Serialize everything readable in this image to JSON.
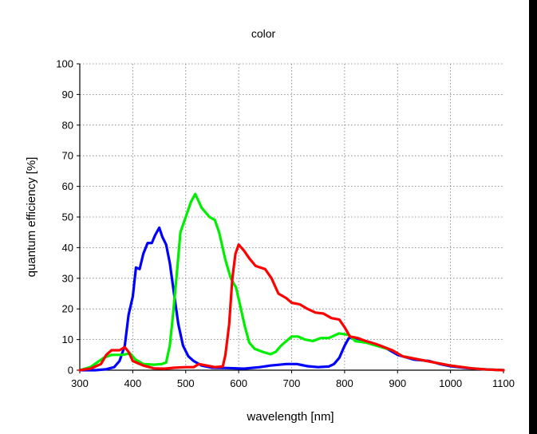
{
  "chart_data": {
    "type": "line",
    "title": "color",
    "xlabel": "wavelength [nm]",
    "ylabel": "quantum efficiency [%]",
    "xlim": [
      300,
      1100
    ],
    "ylim": [
      0,
      100
    ],
    "x_ticks": [
      "300",
      "400",
      "500",
      "600",
      "700",
      "800",
      "900",
      "1000",
      "1100"
    ],
    "y_ticks": [
      "0",
      "10",
      "20",
      "30",
      "40",
      "50",
      "60",
      "70",
      "80",
      "90",
      "100"
    ],
    "grid": true,
    "legend": false,
    "series": [
      {
        "color": "#0000ff",
        "points": [
          [
            300,
            0
          ],
          [
            330,
            0
          ],
          [
            350,
            0.3
          ],
          [
            365,
            1
          ],
          [
            375,
            3
          ],
          [
            385,
            8
          ],
          [
            392,
            18
          ],
          [
            400,
            24
          ],
          [
            406,
            33.5
          ],
          [
            413,
            33
          ],
          [
            420,
            38
          ],
          [
            428,
            41.5
          ],
          [
            436,
            41.5
          ],
          [
            442,
            44
          ],
          [
            450,
            46.5
          ],
          [
            456,
            43.5
          ],
          [
            463,
            41
          ],
          [
            470,
            35
          ],
          [
            478,
            25
          ],
          [
            486,
            15
          ],
          [
            495,
            8
          ],
          [
            505,
            4.5
          ],
          [
            515,
            3
          ],
          [
            530,
            1.5
          ],
          [
            550,
            0.8
          ],
          [
            580,
            0.7
          ],
          [
            610,
            0.5
          ],
          [
            640,
            1
          ],
          [
            660,
            1.5
          ],
          [
            690,
            2
          ],
          [
            710,
            2
          ],
          [
            730,
            1.3
          ],
          [
            750,
            1
          ],
          [
            770,
            1.2
          ],
          [
            780,
            2
          ],
          [
            790,
            4
          ],
          [
            800,
            8
          ],
          [
            808,
            10.5
          ],
          [
            820,
            10.5
          ],
          [
            850,
            9
          ],
          [
            880,
            7
          ],
          [
            900,
            5
          ],
          [
            930,
            3.5
          ],
          [
            960,
            3
          ],
          [
            980,
            2
          ],
          [
            1000,
            1.3
          ],
          [
            1030,
            0.7
          ],
          [
            1060,
            0.3
          ],
          [
            1100,
            0
          ]
        ]
      },
      {
        "color": "#00ee00",
        "points": [
          [
            300,
            0
          ],
          [
            320,
            1
          ],
          [
            345,
            4
          ],
          [
            360,
            5
          ],
          [
            380,
            5
          ],
          [
            395,
            5.5
          ],
          [
            405,
            3.5
          ],
          [
            420,
            2
          ],
          [
            440,
            1.8
          ],
          [
            455,
            2
          ],
          [
            463,
            2.5
          ],
          [
            470,
            8
          ],
          [
            476,
            18
          ],
          [
            484,
            33
          ],
          [
            490,
            45
          ],
          [
            500,
            50
          ],
          [
            510,
            55
          ],
          [
            518,
            57.5
          ],
          [
            522,
            56
          ],
          [
            530,
            53
          ],
          [
            545,
            50
          ],
          [
            555,
            49
          ],
          [
            563,
            45
          ],
          [
            575,
            36
          ],
          [
            585,
            30
          ],
          [
            595,
            27
          ],
          [
            603,
            21
          ],
          [
            612,
            14
          ],
          [
            620,
            9
          ],
          [
            630,
            7
          ],
          [
            645,
            6
          ],
          [
            660,
            5.2
          ],
          [
            670,
            6
          ],
          [
            680,
            8
          ],
          [
            690,
            9.5
          ],
          [
            700,
            11
          ],
          [
            712,
            11
          ],
          [
            725,
            10
          ],
          [
            740,
            9.5
          ],
          [
            755,
            10.5
          ],
          [
            770,
            10.5
          ],
          [
            790,
            12
          ],
          [
            808,
            11.5
          ],
          [
            820,
            9.5
          ],
          [
            840,
            9
          ],
          [
            860,
            8
          ],
          [
            890,
            6.5
          ],
          [
            910,
            4.5
          ],
          [
            940,
            3.5
          ],
          [
            970,
            2.5
          ],
          [
            1000,
            1.5
          ],
          [
            1040,
            0.6
          ],
          [
            1070,
            0.2
          ],
          [
            1100,
            0
          ]
        ]
      },
      {
        "color": "#ff0000",
        "points": [
          [
            300,
            0
          ],
          [
            320,
            0.5
          ],
          [
            340,
            2
          ],
          [
            350,
            5
          ],
          [
            360,
            6.5
          ],
          [
            375,
            6.5
          ],
          [
            385,
            7.5
          ],
          [
            392,
            6
          ],
          [
            400,
            3
          ],
          [
            420,
            1.5
          ],
          [
            440,
            0.6
          ],
          [
            460,
            0.5
          ],
          [
            480,
            0.8
          ],
          [
            500,
            1
          ],
          [
            515,
            1
          ],
          [
            525,
            2
          ],
          [
            540,
            1.5
          ],
          [
            555,
            1
          ],
          [
            570,
            1.2
          ],
          [
            575,
            5
          ],
          [
            582,
            15
          ],
          [
            588,
            30
          ],
          [
            594,
            38
          ],
          [
            600,
            41
          ],
          [
            610,
            39
          ],
          [
            620,
            36.5
          ],
          [
            632,
            34
          ],
          [
            650,
            33
          ],
          [
            662,
            30
          ],
          [
            675,
            25
          ],
          [
            690,
            23.5
          ],
          [
            700,
            22
          ],
          [
            715,
            21.5
          ],
          [
            730,
            20
          ],
          [
            745,
            18.8
          ],
          [
            760,
            18.5
          ],
          [
            775,
            17
          ],
          [
            790,
            16.5
          ],
          [
            800,
            14
          ],
          [
            810,
            11
          ],
          [
            825,
            10.5
          ],
          [
            840,
            9.5
          ],
          [
            860,
            8.5
          ],
          [
            890,
            6.5
          ],
          [
            910,
            4.5
          ],
          [
            940,
            3.5
          ],
          [
            970,
            2.5
          ],
          [
            1000,
            1.5
          ],
          [
            1040,
            0.6
          ],
          [
            1070,
            0.2
          ],
          [
            1100,
            0
          ]
        ]
      }
    ]
  }
}
